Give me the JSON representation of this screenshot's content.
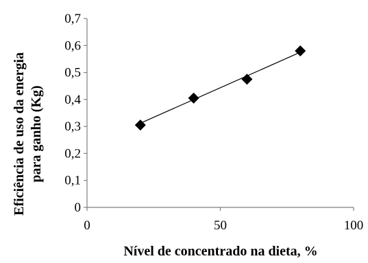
{
  "chart_data": {
    "type": "scatter",
    "xlabel": "Nível de concentrado na dieta, %",
    "ylabel_lines": [
      "Eficiência de uso da energia",
      "para ganho (Kg)"
    ],
    "xlim": [
      0,
      100
    ],
    "ylim": [
      0,
      0.7
    ],
    "x_ticks": [
      {
        "value": 0,
        "label": "0"
      },
      {
        "value": 50,
        "label": "50"
      },
      {
        "value": 100,
        "label": "100"
      }
    ],
    "y_ticks": [
      {
        "value": 0,
        "label": "0"
      },
      {
        "value": 0.1,
        "label": "0,1"
      },
      {
        "value": 0.2,
        "label": "0,2"
      },
      {
        "value": 0.3,
        "label": "0,3"
      },
      {
        "value": 0.4,
        "label": "0,4"
      },
      {
        "value": 0.5,
        "label": "0,5"
      },
      {
        "value": 0.6,
        "label": "0,6"
      },
      {
        "value": 0.7,
        "label": "0,7"
      }
    ],
    "grid": false,
    "series": [
      {
        "marker": "diamond",
        "color": "#000000",
        "x": [
          20,
          40,
          60,
          80
        ],
        "y": [
          0.305,
          0.405,
          0.475,
          0.58
        ]
      }
    ],
    "trendline": {
      "type": "linear",
      "x": [
        20,
        80
      ],
      "y": [
        0.312,
        0.575
      ],
      "color": "#000000"
    }
  }
}
